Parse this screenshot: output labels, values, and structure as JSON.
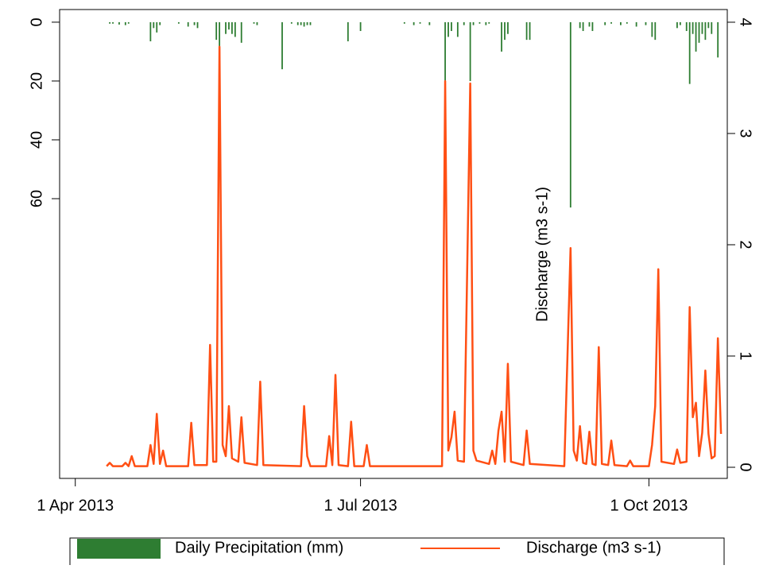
{
  "chart_data": {
    "type": "combo",
    "y2_label": "Discharge (m3 s-1)",
    "xlim": [
      "2013-03-27",
      "2013-10-26"
    ],
    "xticks": [
      {
        "value": "2013-04-01",
        "label": "1 Apr 2013"
      },
      {
        "value": "2013-07-01",
        "label": "1 Jul 2013"
      },
      {
        "value": "2013-10-01",
        "label": "1 Oct 2013"
      }
    ],
    "ylim": [
      155.1,
      -4.3
    ],
    "yticks": [
      0,
      20,
      40,
      60
    ],
    "y2lim": [
      -0.1,
      4.114
    ],
    "y2ticks": [
      0,
      1,
      2,
      3,
      4
    ],
    "legend": "bottom",
    "series": [
      {
        "name": "Daily Precipitation (mm)",
        "type": "bar",
        "axis": "y",
        "color": "#2e7d32",
        "x": [
          "2013-04-12",
          "2013-04-13",
          "2013-04-15",
          "2013-04-17",
          "2013-04-18",
          "2013-04-25",
          "2013-04-26",
          "2013-04-27",
          "2013-04-28",
          "2013-05-04",
          "2013-05-07",
          "2013-05-09",
          "2013-05-10",
          "2013-05-16",
          "2013-05-17",
          "2013-05-19",
          "2013-05-20",
          "2013-05-21",
          "2013-05-22",
          "2013-05-24",
          "2013-05-28",
          "2013-05-29",
          "2013-06-06",
          "2013-06-09",
          "2013-06-11",
          "2013-06-12",
          "2013-06-13",
          "2013-06-14",
          "2013-06-15",
          "2013-06-27",
          "2013-07-01",
          "2013-07-15",
          "2013-07-18",
          "2013-07-20",
          "2013-07-23",
          "2013-07-28",
          "2013-07-29",
          "2013-07-30",
          "2013-08-01",
          "2013-08-03",
          "2013-08-05",
          "2013-08-06",
          "2013-08-08",
          "2013-08-10",
          "2013-08-11",
          "2013-08-15",
          "2013-08-16",
          "2013-08-17",
          "2013-08-23",
          "2013-08-24",
          "2013-09-06",
          "2013-09-09",
          "2013-09-10",
          "2013-09-12",
          "2013-09-13",
          "2013-09-17",
          "2013-09-19",
          "2013-09-22",
          "2013-09-24",
          "2013-09-27",
          "2013-09-30",
          "2013-10-02",
          "2013-10-03",
          "2013-10-10",
          "2013-10-11",
          "2013-10-13",
          "2013-10-14",
          "2013-10-15",
          "2013-10-16",
          "2013-10-17",
          "2013-10-18",
          "2013-10-19",
          "2013-10-20",
          "2013-10-21",
          "2013-10-23"
        ],
        "values": [
          0.5,
          0.5,
          0.8,
          1,
          0.5,
          6.5,
          2,
          3.5,
          1,
          0.5,
          1.5,
          1,
          2,
          6,
          50,
          4,
          2.5,
          4,
          5,
          7,
          0.5,
          1,
          16,
          0.5,
          1,
          1,
          1.5,
          1,
          1,
          6.5,
          3,
          0.5,
          1,
          0.5,
          1,
          40,
          5,
          3,
          5,
          1,
          20,
          1,
          0.5,
          1,
          0.5,
          10,
          6,
          4,
          6,
          6,
          63,
          2,
          3,
          1.5,
          3,
          1,
          0.5,
          1,
          0.5,
          1.5,
          1,
          5,
          6,
          2,
          1,
          3,
          21,
          4,
          10,
          7,
          4,
          6,
          2,
          4,
          12
        ]
      },
      {
        "name": "Discharge (m3 s-1)",
        "type": "line",
        "axis": "y2",
        "color": "#ff4f14",
        "x": [
          "2013-04-11",
          "2013-04-12",
          "2013-04-13",
          "2013-04-16",
          "2013-04-17",
          "2013-04-18",
          "2013-04-19",
          "2013-04-20",
          "2013-04-24",
          "2013-04-25",
          "2013-04-26",
          "2013-04-27",
          "2013-04-28",
          "2013-04-29",
          "2013-04-30",
          "2013-05-07",
          "2013-05-08",
          "2013-05-09",
          "2013-05-13",
          "2013-05-14",
          "2013-05-15",
          "2013-05-16",
          "2013-05-17",
          "2013-05-18",
          "2013-05-19",
          "2013-05-20",
          "2013-05-21",
          "2013-05-23",
          "2013-05-24",
          "2013-05-25",
          "2013-05-29",
          "2013-05-30",
          "2013-05-31",
          "2013-06-12",
          "2013-06-13",
          "2013-06-14",
          "2013-06-15",
          "2013-06-20",
          "2013-06-21",
          "2013-06-22",
          "2013-06-23",
          "2013-06-24",
          "2013-06-27",
          "2013-06-28",
          "2013-06-29",
          "2013-07-02",
          "2013-07-03",
          "2013-07-04",
          "2013-07-27",
          "2013-07-28",
          "2013-07-29",
          "2013-07-30",
          "2013-07-31",
          "2013-08-01",
          "2013-08-03",
          "2013-08-04",
          "2013-08-05",
          "2013-08-06",
          "2013-08-07",
          "2013-08-11",
          "2013-08-12",
          "2013-08-13",
          "2013-08-14",
          "2013-08-15",
          "2013-08-16",
          "2013-08-17",
          "2013-08-18",
          "2013-08-22",
          "2013-08-23",
          "2013-08-24",
          "2013-09-04",
          "2013-09-05",
          "2013-09-06",
          "2013-09-07",
          "2013-09-08",
          "2013-09-09",
          "2013-09-10",
          "2013-09-11",
          "2013-09-12",
          "2013-09-13",
          "2013-09-14",
          "2013-09-15",
          "2013-09-16",
          "2013-09-18",
          "2013-09-19",
          "2013-09-20",
          "2013-09-24",
          "2013-09-25",
          "2013-09-26",
          "2013-10-01",
          "2013-10-02",
          "2013-10-03",
          "2013-10-04",
          "2013-10-05",
          "2013-10-09",
          "2013-10-10",
          "2013-10-11",
          "2013-10-13",
          "2013-10-14",
          "2013-10-15",
          "2013-10-16",
          "2013-10-17",
          "2013-10-18",
          "2013-10-19",
          "2013-10-20",
          "2013-10-21",
          "2013-10-22",
          "2013-10-23",
          "2013-10-24"
        ],
        "values": [
          0.01,
          0.04,
          0.01,
          0.01,
          0.04,
          0.01,
          0.1,
          0.01,
          0.01,
          0.2,
          0.03,
          0.48,
          0.03,
          0.15,
          0.01,
          0.01,
          0.4,
          0.02,
          0.02,
          1.1,
          0.05,
          0.05,
          3.78,
          0.2,
          0.1,
          0.55,
          0.08,
          0.05,
          0.45,
          0.04,
          0.02,
          0.77,
          0.02,
          0.01,
          0.55,
          0.1,
          0.01,
          0.01,
          0.28,
          0.02,
          0.83,
          0.02,
          0.01,
          0.41,
          0.01,
          0.01,
          0.2,
          0.01,
          0.01,
          3.47,
          0.15,
          0.27,
          0.5,
          0.06,
          0.05,
          1.73,
          3.45,
          0.15,
          0.06,
          0.03,
          0.15,
          0.03,
          0.33,
          0.5,
          0.05,
          0.93,
          0.05,
          0.02,
          0.33,
          0.03,
          0.01,
          0.98,
          1.97,
          0.15,
          0.06,
          0.37,
          0.04,
          0.03,
          0.32,
          0.03,
          0.02,
          1.08,
          0.03,
          0.02,
          0.24,
          0.02,
          0.01,
          0.06,
          0.01,
          0.01,
          0.2,
          0.55,
          1.78,
          0.05,
          0.03,
          0.16,
          0.04,
          0.05,
          1.44,
          0.45,
          0.58,
          0.1,
          0.31,
          0.87,
          0.3,
          0.08,
          0.1,
          1.16,
          0.3
        ]
      }
    ]
  }
}
